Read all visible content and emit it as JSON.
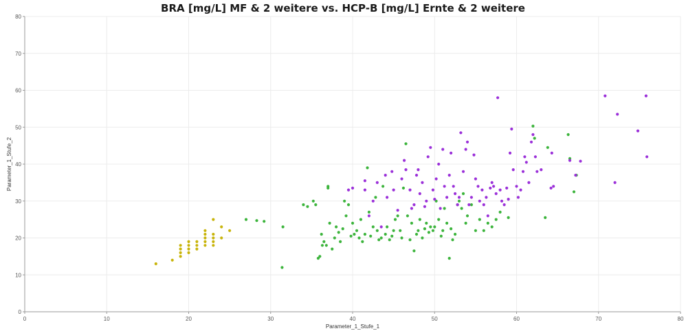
{
  "chart_data": {
    "type": "scatter",
    "title": "BRA [mg/L] MF & 2 weitere vs. HCP-B [mg/L] Ernte & 2 weitere",
    "xlabel": "Parameter_1_Stufe_1",
    "ylabel": "Parameter_1_Stufe_2",
    "xlim": [
      0,
      80
    ],
    "ylim": [
      0,
      80
    ],
    "xticks": [
      0,
      10,
      20,
      30,
      40,
      50,
      60,
      70,
      80
    ],
    "yticks": [
      0,
      10,
      20,
      30,
      40,
      50,
      60,
      70,
      80
    ],
    "grid": true,
    "legend": "none",
    "series": [
      {
        "color": "#c8b40a",
        "points": [
          [
            16,
            13
          ],
          [
            18,
            14
          ],
          [
            19,
            15
          ],
          [
            19,
            16
          ],
          [
            19,
            17
          ],
          [
            19,
            18
          ],
          [
            20,
            16
          ],
          [
            20,
            17
          ],
          [
            20,
            18
          ],
          [
            20,
            19
          ],
          [
            21,
            17
          ],
          [
            21,
            18
          ],
          [
            21,
            19
          ],
          [
            22,
            18
          ],
          [
            22,
            19
          ],
          [
            22,
            20
          ],
          [
            22,
            21
          ],
          [
            22,
            22
          ],
          [
            23,
            18
          ],
          [
            23,
            19
          ],
          [
            23,
            20
          ],
          [
            23,
            21
          ],
          [
            23,
            25
          ],
          [
            24,
            20
          ],
          [
            24,
            23
          ],
          [
            25,
            22
          ]
        ]
      },
      {
        "color": "#3cb43c",
        "points": [
          [
            27,
            25
          ],
          [
            28.3,
            24.7
          ],
          [
            29.2,
            24.5
          ],
          [
            31.5,
            23
          ],
          [
            31.4,
            12
          ],
          [
            34,
            29
          ],
          [
            34.5,
            28.5
          ],
          [
            35.2,
            30
          ],
          [
            35.5,
            29
          ],
          [
            35.8,
            14.5
          ],
          [
            36,
            15
          ],
          [
            36.2,
            21
          ],
          [
            36.3,
            18
          ],
          [
            36.5,
            19
          ],
          [
            36.8,
            18
          ],
          [
            37,
            34
          ],
          [
            37,
            33.5
          ],
          [
            37.2,
            24
          ],
          [
            37.5,
            17
          ],
          [
            37.8,
            20
          ],
          [
            38,
            23
          ],
          [
            38.3,
            21.5
          ],
          [
            38.5,
            19
          ],
          [
            38.8,
            22.5
          ],
          [
            39,
            30
          ],
          [
            39.2,
            26
          ],
          [
            39.5,
            29
          ],
          [
            39.8,
            20.5
          ],
          [
            40,
            24
          ],
          [
            40.2,
            21
          ],
          [
            40.5,
            22
          ],
          [
            40.8,
            20
          ],
          [
            41,
            25
          ],
          [
            41.2,
            19
          ],
          [
            41.5,
            21
          ],
          [
            41.8,
            39
          ],
          [
            42,
            27
          ],
          [
            42.2,
            20.5
          ],
          [
            42.5,
            23
          ],
          [
            42.8,
            31
          ],
          [
            43,
            22
          ],
          [
            43.2,
            19.5
          ],
          [
            43.5,
            20
          ],
          [
            43.7,
            34
          ],
          [
            44,
            21
          ],
          [
            44.2,
            23
          ],
          [
            44.5,
            19.5
          ],
          [
            44.8,
            20.5
          ],
          [
            45,
            22
          ],
          [
            45.2,
            25
          ],
          [
            45.5,
            26
          ],
          [
            45.8,
            22
          ],
          [
            46,
            20
          ],
          [
            46.2,
            33.5
          ],
          [
            46.5,
            45.5
          ],
          [
            46.7,
            26
          ],
          [
            47,
            19.5
          ],
          [
            47.2,
            24
          ],
          [
            47.5,
            16.5
          ],
          [
            47.8,
            21
          ],
          [
            48,
            22
          ],
          [
            48.2,
            25
          ],
          [
            48.5,
            20
          ],
          [
            48.8,
            22.5
          ],
          [
            49,
            24
          ],
          [
            49.3,
            21.5
          ],
          [
            49.5,
            23
          ],
          [
            49.8,
            22
          ],
          [
            50,
            23
          ],
          [
            50.2,
            30
          ],
          [
            50.5,
            25
          ],
          [
            50.8,
            20.5
          ],
          [
            51,
            22
          ],
          [
            51.2,
            28
          ],
          [
            51.5,
            24
          ],
          [
            51.8,
            14.5
          ],
          [
            52,
            22.5
          ],
          [
            52.2,
            19.5
          ],
          [
            52.5,
            21
          ],
          [
            52.8,
            29
          ],
          [
            53,
            30
          ],
          [
            53.3,
            28
          ],
          [
            53.5,
            32
          ],
          [
            53.8,
            24
          ],
          [
            54,
            26
          ],
          [
            54.5,
            29
          ],
          [
            55,
            22
          ],
          [
            55.5,
            25
          ],
          [
            56,
            22
          ],
          [
            56.5,
            24
          ],
          [
            57,
            23
          ],
          [
            57.5,
            25
          ],
          [
            58,
            27
          ],
          [
            59,
            25.5
          ],
          [
            62,
            50.3
          ],
          [
            62.2,
            47
          ],
          [
            63.5,
            25.5
          ],
          [
            63.8,
            44.5
          ],
          [
            66.3,
            48
          ],
          [
            66.5,
            41.5
          ],
          [
            67,
            32.5
          ],
          [
            67.3,
            37
          ]
        ]
      },
      {
        "color": "#9b30d9",
        "points": [
          [
            39.5,
            33
          ],
          [
            40,
            33.5
          ],
          [
            41.5,
            35.5
          ],
          [
            41.5,
            33
          ],
          [
            42,
            26
          ],
          [
            42.5,
            30
          ],
          [
            43,
            35
          ],
          [
            43.5,
            23
          ],
          [
            44,
            37
          ],
          [
            44.2,
            31
          ],
          [
            44.8,
            38
          ],
          [
            45,
            33
          ],
          [
            45.5,
            27.5
          ],
          [
            46,
            36
          ],
          [
            46.3,
            41
          ],
          [
            46.5,
            38.5
          ],
          [
            47,
            33
          ],
          [
            47.2,
            28
          ],
          [
            47.5,
            29
          ],
          [
            47.8,
            37
          ],
          [
            48,
            38.5
          ],
          [
            48.2,
            32
          ],
          [
            48.5,
            35
          ],
          [
            48.8,
            28.5
          ],
          [
            49,
            30
          ],
          [
            49.2,
            42
          ],
          [
            49.5,
            44.5
          ],
          [
            49.8,
            33
          ],
          [
            50,
            30.5
          ],
          [
            50.2,
            36
          ],
          [
            50.5,
            40
          ],
          [
            50.7,
            28
          ],
          [
            51,
            44
          ],
          [
            51.2,
            34
          ],
          [
            51.5,
            31
          ],
          [
            51.8,
            37
          ],
          [
            52,
            43
          ],
          [
            52.3,
            34
          ],
          [
            52.5,
            32
          ],
          [
            52.8,
            29
          ],
          [
            53,
            31
          ],
          [
            53.2,
            48.5
          ],
          [
            53.5,
            38
          ],
          [
            53.8,
            44
          ],
          [
            54,
            46
          ],
          [
            54.2,
            29
          ],
          [
            54.5,
            31
          ],
          [
            54.8,
            42.5
          ],
          [
            55,
            36
          ],
          [
            55.3,
            34
          ],
          [
            55.5,
            30
          ],
          [
            55.8,
            33
          ],
          [
            56,
            29
          ],
          [
            56.3,
            31
          ],
          [
            56.5,
            26
          ],
          [
            56.8,
            33.5
          ],
          [
            57,
            35
          ],
          [
            57.2,
            34
          ],
          [
            57.5,
            32
          ],
          [
            57.7,
            58
          ],
          [
            58,
            33
          ],
          [
            58.2,
            30
          ],
          [
            58.5,
            29
          ],
          [
            58.8,
            33.5
          ],
          [
            59,
            30.5
          ],
          [
            59.2,
            43
          ],
          [
            59.4,
            49.5
          ],
          [
            59.6,
            38.5
          ],
          [
            60,
            34
          ],
          [
            60.2,
            31
          ],
          [
            60.5,
            33
          ],
          [
            60.8,
            38
          ],
          [
            61,
            42
          ],
          [
            61.2,
            40.5
          ],
          [
            61.5,
            35
          ],
          [
            61.8,
            46
          ],
          [
            62,
            48
          ],
          [
            62.3,
            42
          ],
          [
            62.5,
            38
          ],
          [
            63,
            38.5
          ],
          [
            64.2,
            33.5
          ],
          [
            64.5,
            34
          ],
          [
            64.3,
            43
          ],
          [
            66.5,
            41
          ],
          [
            67.2,
            37
          ],
          [
            67.8,
            40.8
          ],
          [
            70.8,
            58.5
          ],
          [
            72,
            35
          ],
          [
            72.3,
            53.5
          ],
          [
            74.8,
            49
          ],
          [
            75.8,
            58.5
          ],
          [
            75.9,
            42
          ]
        ]
      }
    ]
  }
}
